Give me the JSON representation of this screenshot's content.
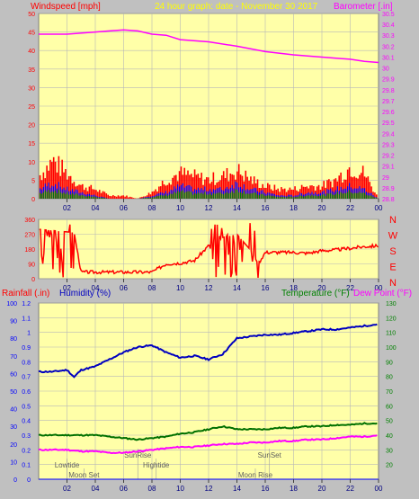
{
  "header": {
    "left_label": "Windspeed [mph]",
    "center_label": "24 hour graph: date - November 30 2017",
    "right_label": "Barometer [.in]"
  },
  "colors": {
    "background": "#c0c0c0",
    "plot_bg": "#ffffa8",
    "grid": "#b8b8b8",
    "wind_gust": "#ff0000",
    "wind_avg": "#0000ff",
    "wind_low": "#008000",
    "barometer": "#ff00ff",
    "wind_dir": "#ff0000",
    "humidity": "#0000c0",
    "temperature": "#007000",
    "dew_point": "#ff00ff",
    "rain_axis": "#0000ff",
    "red_label": "#ff0000",
    "green_label": "#008000"
  },
  "chart_data": [
    {
      "type": "line",
      "id": "wind-barometer",
      "x_ticks": [
        "02",
        "04",
        "06",
        "08",
        "10",
        "12",
        "14",
        "16",
        "18",
        "20",
        "22",
        "00"
      ],
      "left_axis": {
        "label": "Windspeed [mph]",
        "ylim": [
          0,
          50
        ],
        "ticks": [
          0,
          5,
          10,
          15,
          20,
          25,
          30,
          35,
          40,
          45,
          50
        ]
      },
      "right_axis": {
        "label": "Barometer [.in]",
        "ylim": [
          28.8,
          30.5
        ],
        "ticks": [
          "28.8",
          "28.9",
          "29",
          "29.1",
          "29.2",
          "29.3",
          "29.4",
          "29.5",
          "29.6",
          "29.7",
          "29.8",
          "29.9",
          "30",
          "30.1",
          "30.2",
          "30.3",
          "30.4",
          "30.5"
        ]
      },
      "series": [
        {
          "name": "Barometer",
          "axis": "right",
          "x": [
            0,
            2,
            4,
            6,
            7,
            8,
            9,
            10,
            12,
            14,
            16,
            18,
            20,
            22,
            23,
            24
          ],
          "values": [
            30.31,
            30.31,
            30.33,
            30.35,
            30.34,
            30.31,
            30.3,
            30.26,
            30.24,
            30.2,
            30.15,
            30.12,
            30.1,
            30.08,
            30.06,
            30.05
          ]
        },
        {
          "name": "Wind gust",
          "axis": "left",
          "x": [
            0,
            1,
            2,
            3,
            4,
            5,
            6,
            7,
            8,
            9,
            10,
            11,
            12,
            13,
            14,
            15,
            16,
            17,
            18,
            19,
            20,
            21,
            22,
            23,
            24
          ],
          "values": [
            7,
            12,
            8,
            4,
            3,
            1,
            1,
            0,
            2,
            6,
            8,
            7,
            6,
            7,
            9,
            6,
            4,
            3,
            3,
            4,
            4,
            6,
            10,
            8,
            0
          ]
        },
        {
          "name": "Wind average",
          "axis": "left",
          "x": [
            0,
            1,
            2,
            3,
            4,
            5,
            6,
            7,
            8,
            9,
            10,
            11,
            12,
            13,
            14,
            15,
            16,
            17,
            18,
            19,
            20,
            21,
            22,
            23,
            24
          ],
          "values": [
            3,
            5,
            3,
            2,
            1,
            0,
            0,
            0,
            1,
            2,
            4,
            3,
            3,
            3,
            5,
            3,
            2,
            1,
            1,
            2,
            2,
            3,
            4,
            3,
            0
          ]
        }
      ]
    },
    {
      "type": "line",
      "id": "wind-direction",
      "x_ticks": [
        "02",
        "04",
        "06",
        "08",
        "10",
        "12",
        "14",
        "16",
        "18",
        "20",
        "22",
        "00"
      ],
      "left_axis": {
        "ylim": [
          0,
          360
        ],
        "ticks": [
          0,
          90,
          180,
          270,
          360
        ]
      },
      "right_axis_labels": [
        "N",
        "W",
        "S",
        "E",
        "N"
      ],
      "series": [
        {
          "name": "Wind direction",
          "x": [
            0,
            2.5,
            3,
            4,
            5,
            6,
            7,
            8,
            9,
            10,
            11,
            12,
            13,
            14,
            15,
            15.5,
            16,
            17,
            18,
            19,
            20,
            21,
            22,
            23,
            24
          ],
          "values": [
            300,
            280,
            40,
            40,
            40,
            40,
            40,
            40,
            90,
            95,
            110,
            200,
            250,
            270,
            170,
            90,
            160,
            160,
            160,
            155,
            170,
            175,
            185,
            195,
            200
          ]
        }
      ]
    },
    {
      "type": "line",
      "id": "humidity-temp",
      "x_ticks": [
        "02",
        "04",
        "06",
        "08",
        "10",
        "12",
        "14",
        "16",
        "18",
        "20",
        "22",
        "00"
      ],
      "left_label_rain": "Rainfall (.in)",
      "left_label_humidity": "Humidity (%)",
      "right_label_temp": "Temperature (°F)",
      "right_label_dew": "Dew Point (°F)",
      "rain_axis": {
        "ylim": [
          0,
          1.2
        ],
        "ticks": [
          "0",
          "0.1",
          "0.2",
          "0.3",
          "0.4",
          "0.5",
          "0.6",
          "0.7",
          "0.8",
          "0.9",
          "1",
          "1.1",
          "1.2"
        ]
      },
      "humidity_axis": {
        "ylim": [
          0,
          100
        ],
        "ticks": [
          0,
          10,
          20,
          30,
          40,
          50,
          60,
          70,
          80,
          90,
          100
        ]
      },
      "temp_axis": {
        "ylim": [
          10,
          130
        ],
        "ticks": [
          20,
          30,
          40,
          50,
          60,
          70,
          80,
          90,
          100,
          110,
          120,
          130
        ]
      },
      "series": [
        {
          "name": "Humidity",
          "axis": "humidity",
          "x": [
            0,
            1,
            2,
            2.5,
            3,
            4,
            5,
            6,
            7,
            8,
            9,
            10,
            11,
            12,
            13,
            14,
            15,
            16,
            17,
            18,
            19,
            20,
            21,
            22,
            23,
            24
          ],
          "values": [
            61,
            61,
            62,
            58,
            62,
            64,
            68,
            72,
            75,
            76,
            72,
            69,
            70,
            68,
            71,
            80,
            81,
            82,
            82,
            83,
            84,
            85,
            85,
            86,
            87,
            88
          ]
        },
        {
          "name": "Temperature",
          "axis": "temp",
          "x": [
            0,
            1,
            2,
            3,
            4,
            5,
            6,
            7,
            8,
            9,
            10,
            11,
            12,
            13,
            14,
            15,
            16,
            17,
            18,
            19,
            20,
            21,
            22,
            23,
            24
          ],
          "values": [
            40,
            40,
            40,
            40,
            40,
            39,
            38,
            37,
            38,
            39,
            41,
            42,
            44,
            46,
            44,
            44,
            44,
            45,
            45,
            46,
            46,
            47,
            47,
            48,
            48
          ]
        },
        {
          "name": "Dew Point",
          "axis": "temp",
          "x": [
            0,
            1,
            2,
            3,
            4,
            5,
            6,
            7,
            8,
            9,
            10,
            11,
            12,
            13,
            14,
            15,
            16,
            17,
            18,
            19,
            20,
            21,
            22,
            23,
            24
          ],
          "values": [
            30,
            30,
            30,
            29,
            29,
            28,
            28,
            29,
            30,
            31,
            32,
            32,
            33,
            34,
            34,
            35,
            35,
            36,
            36,
            37,
            37,
            38,
            39,
            39,
            40
          ]
        },
        {
          "name": "Rainfall",
          "axis": "rain",
          "x": [
            0,
            24
          ],
          "values": [
            0,
            0
          ]
        }
      ],
      "annotations": [
        {
          "text": "Lowtide",
          "x": 2.0,
          "row": 1
        },
        {
          "text": "Moon Set",
          "x": 3.2,
          "row": 2
        },
        {
          "text": "SunRise",
          "x": 7.0,
          "row": 0
        },
        {
          "text": "Hightide",
          "x": 8.3,
          "row": 1
        },
        {
          "text": "SunSet",
          "x": 16.3,
          "row": 0
        },
        {
          "text": "Moon Rise",
          "x": 15.3,
          "row": 2
        }
      ]
    }
  ]
}
